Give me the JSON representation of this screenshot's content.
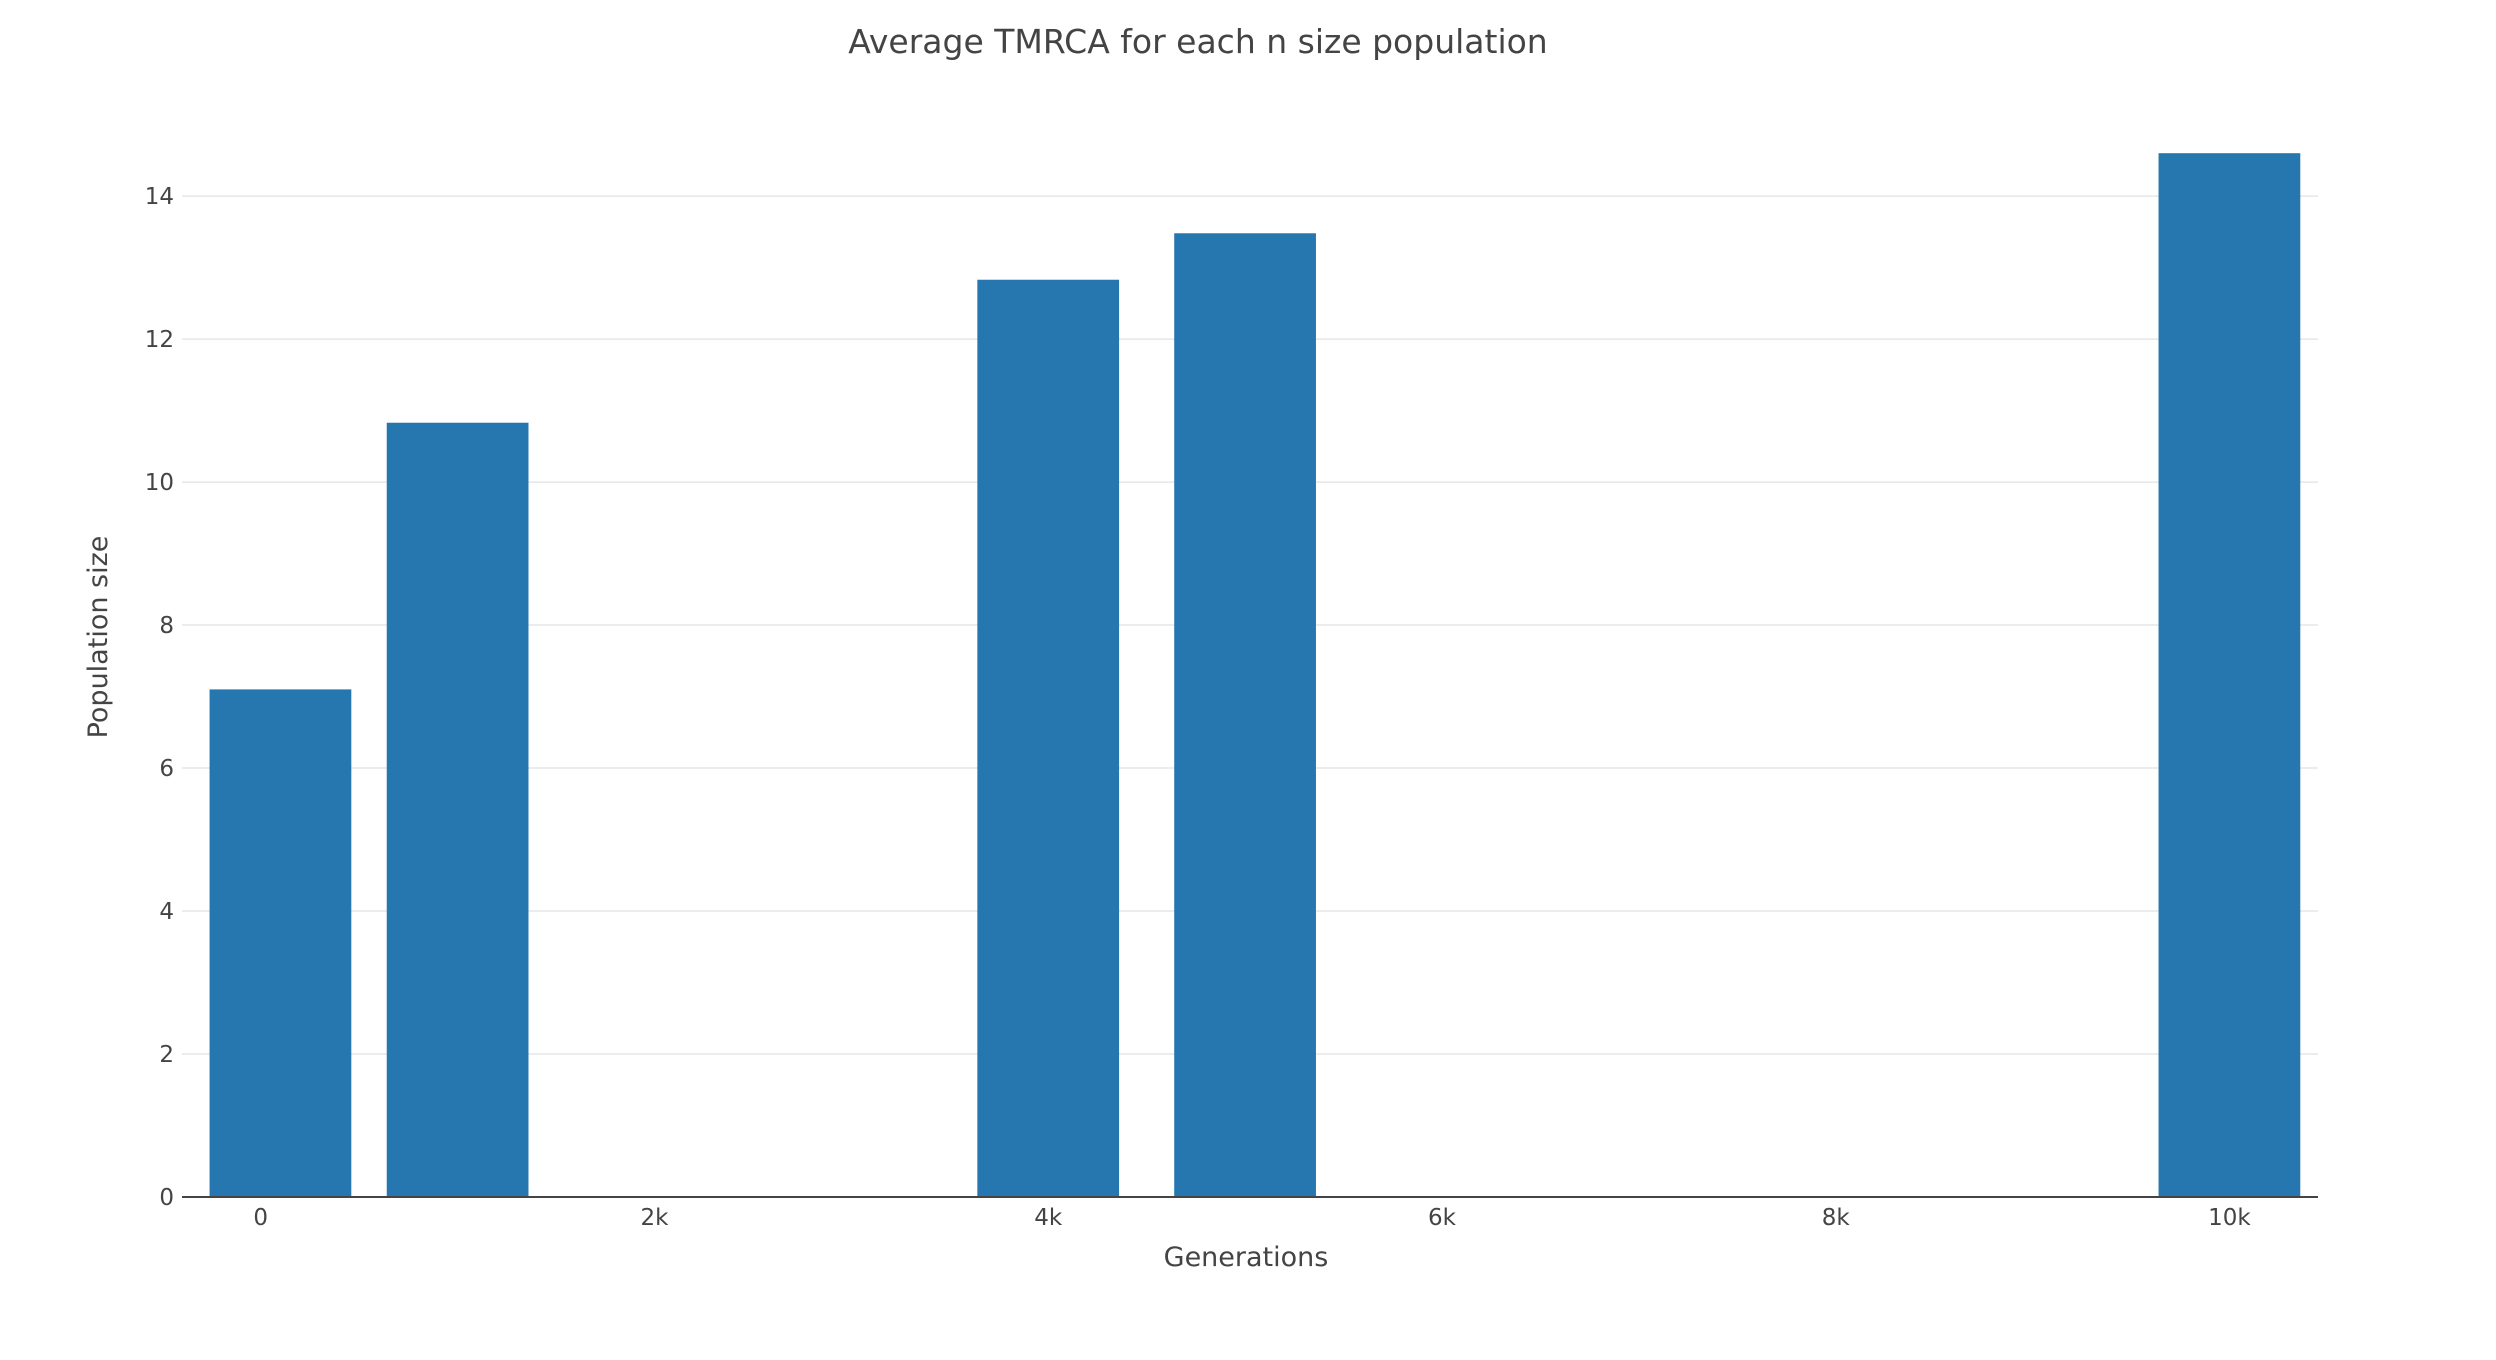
{
  "chart_data": {
    "type": "bar",
    "title": "Average TMRCA for each n size population",
    "xlabel": "Generations",
    "ylabel": "Population size",
    "x": [
      100,
      1000,
      4000,
      5000,
      10000
    ],
    "values": [
      7.1,
      10.83,
      12.83,
      13.48,
      14.6
    ],
    "xlim": [
      -400,
      10450
    ],
    "ylim": [
      0,
      15.4
    ],
    "x_ticks": [
      0,
      2000,
      4000,
      6000,
      8000,
      10000
    ],
    "x_tick_labels": [
      "0",
      "2k",
      "4k",
      "6k",
      "8k",
      "10k"
    ],
    "y_ticks": [
      0,
      2,
      4,
      6,
      8,
      10,
      12,
      14
    ],
    "y_tick_labels": [
      "0",
      "2",
      "4",
      "6",
      "8",
      "10",
      "12",
      "14"
    ],
    "grid": "y-only",
    "legend": "none",
    "bar_color": "#2677b0"
  }
}
